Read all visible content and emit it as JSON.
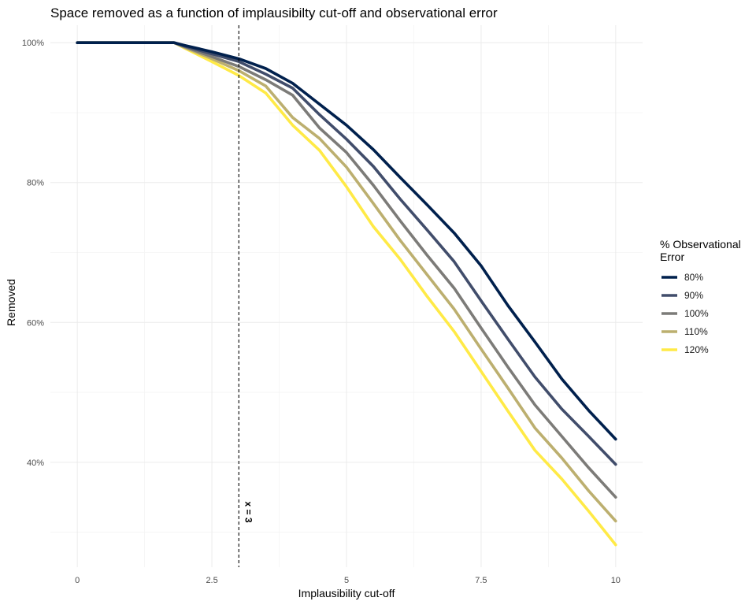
{
  "chart_data": {
    "type": "line",
    "title": "Space removed as a function of implausibilty cut-off and observational error",
    "xlabel": "Implausibility cut-off",
    "ylabel": "Removed",
    "xlim": [
      -0.5,
      10.5
    ],
    "ylim": [
      0.25,
      1.025
    ],
    "x_ticks": [
      0,
      2.5,
      5,
      7.5,
      10
    ],
    "x_tick_labels": [
      "0",
      "2.5",
      "5",
      "7.5",
      "10"
    ],
    "y_ticks": [
      0.4,
      0.6,
      0.8,
      1.0
    ],
    "y_tick_labels": [
      "40%",
      "60%",
      "80%",
      "100%"
    ],
    "grid": true,
    "legend": {
      "title_line1": "% Observational",
      "title_line2": "Error",
      "position": "right"
    },
    "annotation": {
      "type": "vline",
      "x": 3,
      "style": "dashed",
      "label": "x = 3"
    },
    "series": [
      {
        "name": "80%",
        "color": "#00204D",
        "x": [
          0,
          1.5,
          1.8,
          2.0,
          2.5,
          3.0,
          3.5,
          4.0,
          4.5,
          5.0,
          5.5,
          6.0,
          6.5,
          7.0,
          7.5,
          8.0,
          8.5,
          9.0,
          9.5,
          10.0
        ],
        "y": [
          1.0,
          1.0,
          1.0,
          0.996,
          0.987,
          0.977,
          0.963,
          0.942,
          0.912,
          0.882,
          0.847,
          0.807,
          0.768,
          0.728,
          0.681,
          0.624,
          0.572,
          0.519,
          0.474,
          0.433
        ]
      },
      {
        "name": "90%",
        "color": "#414D6B",
        "x": [
          0,
          1.5,
          1.8,
          2.0,
          2.5,
          3.0,
          3.5,
          4.0,
          4.5,
          5.0,
          5.5,
          6.0,
          6.5,
          7.0,
          7.5,
          8.0,
          8.5,
          9.0,
          9.5,
          10.0
        ],
        "y": [
          1.0,
          1.0,
          1.0,
          0.995,
          0.984,
          0.973,
          0.955,
          0.935,
          0.897,
          0.862,
          0.823,
          0.776,
          0.732,
          0.687,
          0.631,
          0.576,
          0.522,
          0.476,
          0.437,
          0.397
        ]
      },
      {
        "name": "100%",
        "color": "#7C7B78",
        "x": [
          0,
          1.5,
          1.8,
          2.0,
          2.5,
          3.0,
          3.5,
          4.0,
          4.5,
          5.0,
          5.5,
          6.0,
          6.5,
          7.0,
          7.5,
          8.0,
          8.5,
          9.0,
          9.5,
          10.0
        ],
        "y": [
          1.0,
          1.0,
          1.0,
          0.994,
          0.98,
          0.966,
          0.947,
          0.925,
          0.878,
          0.843,
          0.796,
          0.745,
          0.696,
          0.649,
          0.592,
          0.536,
          0.482,
          0.437,
          0.392,
          0.35
        ]
      },
      {
        "name": "110%",
        "color": "#BCAF6F",
        "x": [
          0,
          1.5,
          1.8,
          2.0,
          2.5,
          3.0,
          3.5,
          4.0,
          4.5,
          5.0,
          5.5,
          6.0,
          6.5,
          7.0,
          7.5,
          8.0,
          8.5,
          9.0,
          9.5,
          10.0
        ],
        "y": [
          1.0,
          1.0,
          1.0,
          0.993,
          0.977,
          0.96,
          0.938,
          0.893,
          0.863,
          0.822,
          0.77,
          0.717,
          0.668,
          0.619,
          0.562,
          0.506,
          0.449,
          0.406,
          0.359,
          0.316
        ]
      },
      {
        "name": "120%",
        "color": "#FFEA46",
        "x": [
          0,
          1.5,
          1.8,
          2.0,
          2.5,
          3.0,
          3.5,
          4.0,
          4.5,
          5.0,
          5.5,
          6.0,
          6.5,
          7.0,
          7.5,
          8.0,
          8.5,
          9.0,
          9.5,
          10.0
        ],
        "y": [
          1.0,
          1.0,
          1.0,
          0.992,
          0.973,
          0.953,
          0.928,
          0.882,
          0.846,
          0.794,
          0.737,
          0.69,
          0.637,
          0.587,
          0.53,
          0.473,
          0.417,
          0.376,
          0.33,
          0.282
        ]
      }
    ]
  }
}
